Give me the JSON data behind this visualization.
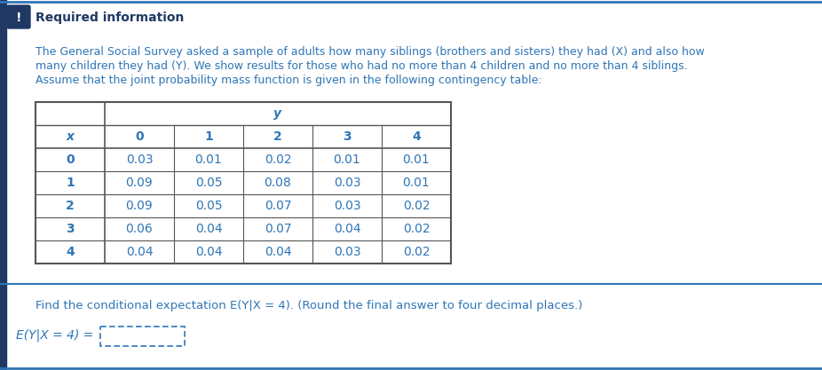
{
  "title": "Required information",
  "paragraph_lines": [
    "The General Social Survey asked a sample of adults how many siblings (brothers and sisters) they had (X) and also how",
    "many children they had (Y). We show results for those who had no more than 4 children and no more than 4 siblings.",
    "Assume that the joint probability mass function is given in the following contingency table:"
  ],
  "table_header_y": "y",
  "col_headers": [
    "x",
    "0",
    "1",
    "2",
    "3",
    "4"
  ],
  "row_headers": [
    "0",
    "1",
    "2",
    "3",
    "4"
  ],
  "table_data": [
    [
      0.03,
      0.01,
      0.02,
      0.01,
      0.01
    ],
    [
      0.09,
      0.05,
      0.08,
      0.03,
      0.01
    ],
    [
      0.09,
      0.05,
      0.07,
      0.03,
      0.02
    ],
    [
      0.06,
      0.04,
      0.07,
      0.04,
      0.02
    ],
    [
      0.04,
      0.04,
      0.04,
      0.03,
      0.02
    ]
  ],
  "question": "Find the conditional expectation E(Y|X = 4). (Round the final answer to four decimal places.)",
  "answer_label": "E(Y|X = 4) =",
  "bg_color": "#ffffff",
  "accent_color": "#2e75b6",
  "dark_blue": "#1f3864",
  "table_border_color": "#555555",
  "text_color": "#2e75b6",
  "title_color": "#1f3864"
}
